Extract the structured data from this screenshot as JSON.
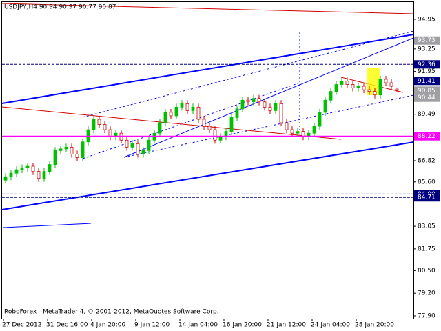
{
  "chart_data": {
    "type": "candlestick",
    "title": "USDJPY,H4  90.94 90.97 90.77 90.87",
    "footer": "RoboForex - MetaTrader 4, © 2001-2012, MetaQuotes Software Corp.",
    "categories": [
      "27 Dec 2012",
      null,
      null,
      null,
      null,
      null,
      null,
      null,
      "31 Dec 16:00",
      null,
      null,
      null,
      null,
      null,
      null,
      null,
      "4 Jan 20:00",
      null,
      null,
      null,
      null,
      null,
      null,
      null,
      "9 Jan 12:00",
      null,
      null,
      null,
      null,
      null,
      null,
      null,
      "14 Jan 04:00",
      null,
      null,
      null,
      null,
      null,
      null,
      null,
      "16 Jan 20:00",
      null,
      null,
      null,
      null,
      null,
      null,
      null,
      "21 Jan 12:00",
      null,
      null,
      null,
      null,
      null,
      null,
      null,
      "24 Jan 04:00",
      null,
      null,
      null,
      null,
      null,
      null,
      null,
      "28 Jan 20:00",
      null,
      null,
      null,
      null,
      null,
      null,
      null
    ],
    "open": [
      85.7,
      85.9,
      86.1,
      86.3,
      86.4,
      86.5,
      86.2,
      85.8,
      86.2,
      86.6,
      87.4,
      87.5,
      87.6,
      87.2,
      87.0,
      87.9,
      88.6,
      89.2,
      88.9,
      88.6,
      88.2,
      88.4,
      88.0,
      87.6,
      87.8,
      87.2,
      87.4,
      88.0,
      88.4,
      89.0,
      89.6,
      89.4,
      89.9,
      90.1,
      89.7,
      89.9,
      89.2,
      88.8,
      88.6,
      88.0,
      88.2,
      88.5,
      89.3,
      89.8,
      90.3,
      90.2,
      90.4,
      90.2,
      89.9,
      89.7,
      90.1,
      89.0,
      88.6,
      88.4,
      88.5,
      88.2,
      88.4,
      88.8,
      89.6,
      90.3,
      90.8,
      91.2,
      91.4,
      91.2,
      91.0,
      91.1,
      90.9,
      90.8,
      90.6,
      91.5,
      91.3,
      90.94
    ],
    "high": [
      86.1,
      86.3,
      86.5,
      86.6,
      86.7,
      86.7,
      86.4,
      86.4,
      86.8,
      87.6,
      87.7,
      87.8,
      87.8,
      87.4,
      88.1,
      88.8,
      89.4,
      89.4,
      89.1,
      88.8,
      88.6,
      88.6,
      88.2,
      88.0,
      88.0,
      87.6,
      88.2,
      88.6,
      89.2,
      89.8,
      89.8,
      90.1,
      90.3,
      90.3,
      90.1,
      90.1,
      89.4,
      89.0,
      88.8,
      88.4,
      88.7,
      89.5,
      90.0,
      90.5,
      90.5,
      90.6,
      90.6,
      90.4,
      90.1,
      90.3,
      90.3,
      89.2,
      88.8,
      88.7,
      88.7,
      88.6,
      89.0,
      89.8,
      90.5,
      91.0,
      91.4,
      91.6,
      91.6,
      91.4,
      91.3,
      91.3,
      91.1,
      91.0,
      91.7,
      91.7,
      91.5,
      90.97
    ],
    "low": [
      85.5,
      85.7,
      85.9,
      86.1,
      86.2,
      86.0,
      85.6,
      85.6,
      86.0,
      86.4,
      87.2,
      87.3,
      87.0,
      86.8,
      86.8,
      87.7,
      88.4,
      88.7,
      88.4,
      88.0,
      88.0,
      87.8,
      87.4,
      87.4,
      87.0,
      87.0,
      87.2,
      87.8,
      88.2,
      88.8,
      89.2,
      89.2,
      89.7,
      89.5,
      89.5,
      89.0,
      88.6,
      88.4,
      87.8,
      87.8,
      88.0,
      88.3,
      89.1,
      89.6,
      90.0,
      90.0,
      90.0,
      89.7,
      89.5,
      89.5,
      88.8,
      88.4,
      88.2,
      88.2,
      88.0,
      88.0,
      88.2,
      88.6,
      89.4,
      90.1,
      90.6,
      91.0,
      91.0,
      90.8,
      90.8,
      90.7,
      90.6,
      90.4,
      90.4,
      91.1,
      90.9,
      90.77
    ],
    "close": [
      85.9,
      86.1,
      86.3,
      86.4,
      86.5,
      86.2,
      85.8,
      86.2,
      86.6,
      87.4,
      87.5,
      87.6,
      87.2,
      87.0,
      87.9,
      88.6,
      89.2,
      88.9,
      88.6,
      88.2,
      88.4,
      88.0,
      87.6,
      87.8,
      87.2,
      87.4,
      88.0,
      88.4,
      89.0,
      89.6,
      89.4,
      89.9,
      90.1,
      89.7,
      89.9,
      89.2,
      88.8,
      88.6,
      88.0,
      88.2,
      88.5,
      89.3,
      89.8,
      90.3,
      90.2,
      90.4,
      90.2,
      89.9,
      89.7,
      90.1,
      89.0,
      88.6,
      88.4,
      88.5,
      88.2,
      88.4,
      88.8,
      89.6,
      90.3,
      90.8,
      91.2,
      91.4,
      91.2,
      91.0,
      91.1,
      90.9,
      90.8,
      90.6,
      91.5,
      91.3,
      91.1,
      90.87
    ],
    "up_color": "#00c000",
    "down_color": "#ffffff",
    "down_stroke": "#d00000",
    "wick_color": "#00c000",
    "ylim": [
      77.74,
      95.98
    ],
    "yticks": [
      94.95,
      93.25,
      91.95,
      89.49,
      86.82,
      {
        "value": 85.6,
        "label": "85.60"
      },
      83.05,
      81.75,
      {
        "value": 80.5,
        "label": "80.50"
      },
      {
        "value": 79.2,
        "label": "79.20"
      },
      {
        "value": 77.9,
        "label": "77.90"
      }
    ],
    "price_labels": [
      {
        "value": 93.73,
        "color": "#a0a0a4",
        "line": "none"
      },
      {
        "value": 92.36,
        "color": "#000080",
        "line": "dashed"
      },
      {
        "value": 91.41,
        "color": "#000080",
        "line": "none"
      },
      {
        "value": 90.85,
        "color": "#a0a0a4",
        "line": "none"
      },
      {
        "value": 90.44,
        "color": "#a0a0a4",
        "line": "none"
      },
      {
        "value": 88.22,
        "color": "#ff00ff",
        "line": "solid"
      },
      {
        "value": {
          "value": 84.9,
          "label": "84.90"
        },
        "color": "#000080",
        "line": "dashed"
      },
      {
        "value": 84.71,
        "color": "#000080",
        "line": "dashed"
      }
    ]
  }
}
